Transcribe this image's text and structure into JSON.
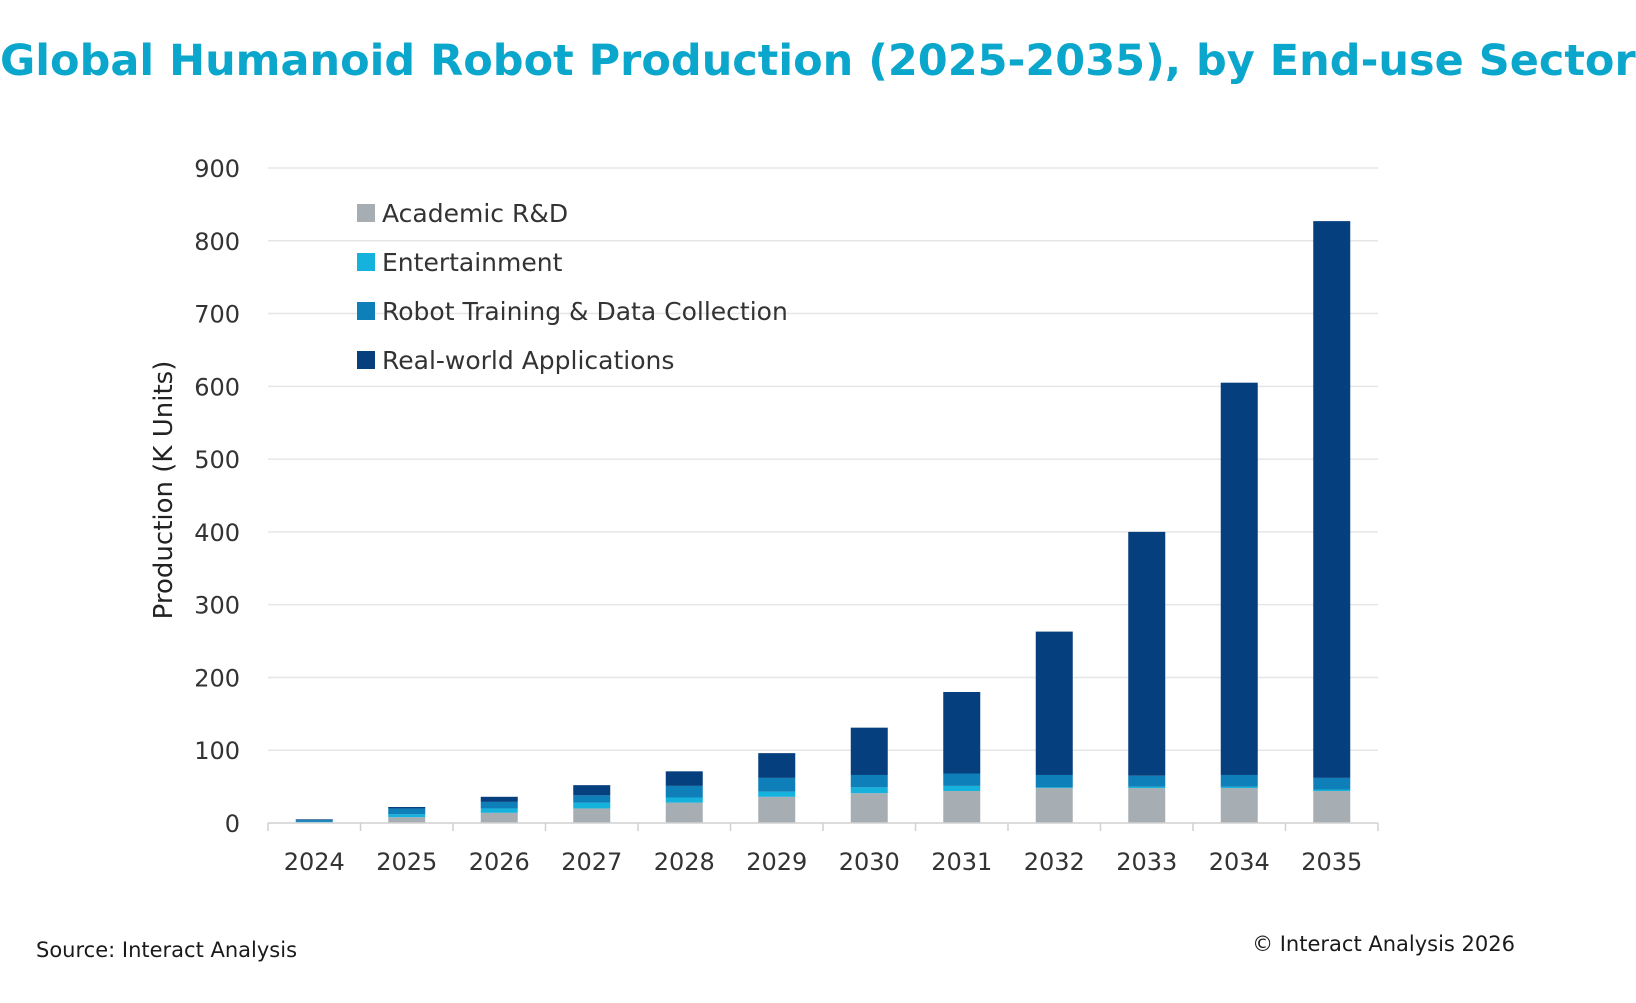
{
  "chart_data": {
    "type": "bar",
    "stacked": true,
    "title": "Global Humanoid Robot Production (2025-2035), by End-use Sector",
    "xlabel": "",
    "ylabel": "Production (K Units)",
    "ylim": [
      0,
      900
    ],
    "yticks": [
      0,
      100,
      200,
      300,
      400,
      500,
      600,
      700,
      800,
      900
    ],
    "grid": true,
    "legend_position": "top-left",
    "categories": [
      "2024",
      "2025",
      "2026",
      "2027",
      "2028",
      "2029",
      "2030",
      "2031",
      "2032",
      "2033",
      "2034",
      "2035"
    ],
    "series": [
      {
        "name": "Academic R&D",
        "color": "#a6aeb4",
        "values": [
          1,
          8,
          14,
          20,
          28,
          36,
          41,
          44,
          48,
          48,
          48,
          44
        ]
      },
      {
        "name": "Entertainment",
        "color": "#14b2dc",
        "values": [
          0.5,
          4,
          6,
          8,
          7,
          7,
          8,
          7,
          1,
          2,
          2,
          2
        ]
      },
      {
        "name": "Robot Training & Data Collection",
        "color": "#0e7fb8",
        "values": [
          2.5,
          8,
          9,
          10,
          16,
          19,
          17,
          17,
          17,
          15,
          16,
          16
        ]
      },
      {
        "name": "Real-world Applications",
        "color": "#053f7d",
        "values": [
          1,
          2,
          7,
          14,
          20,
          34,
          65,
          112,
          197,
          335,
          539,
          765
        ]
      }
    ]
  },
  "footer": {
    "source": "Source: Interact Analysis",
    "copyright": "© Interact Analysis 2026"
  },
  "style": {
    "title_color": "#0aa6cc",
    "axis_text_color": "#333333",
    "grid_color": "#e6e6e6"
  }
}
